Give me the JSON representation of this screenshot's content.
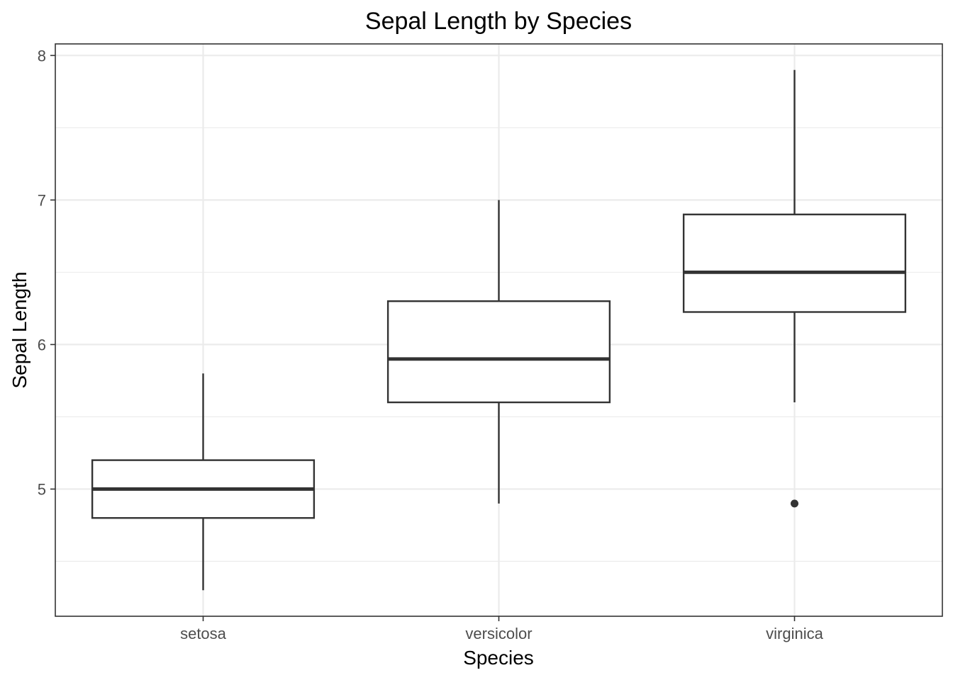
{
  "chart_data": {
    "type": "boxplot",
    "title": "Sepal Length by Species",
    "xlabel": "Species",
    "ylabel": "Sepal Length",
    "categories": [
      "setosa",
      "versicolor",
      "virginica"
    ],
    "boxes": [
      {
        "category": "setosa",
        "whisker_low": 4.3,
        "q1": 4.8,
        "median": 5.0,
        "q3": 5.2,
        "whisker_high": 5.8,
        "outliers": []
      },
      {
        "category": "versicolor",
        "whisker_low": 4.9,
        "q1": 5.6,
        "median": 5.9,
        "q3": 6.3,
        "whisker_high": 7.0,
        "outliers": []
      },
      {
        "category": "virginica",
        "whisker_low": 5.6,
        "q1": 6.225,
        "median": 6.5,
        "q3": 6.9,
        "whisker_high": 7.9,
        "outliers": [
          4.9
        ]
      }
    ],
    "yticks": [
      5,
      6,
      7,
      8
    ],
    "ylim": [
      4.12,
      8.08
    ],
    "grid": true,
    "legend": "none",
    "colors": {
      "box_stroke": "#333333",
      "grid": "#ebebeb",
      "panel_border": "#333333"
    }
  }
}
